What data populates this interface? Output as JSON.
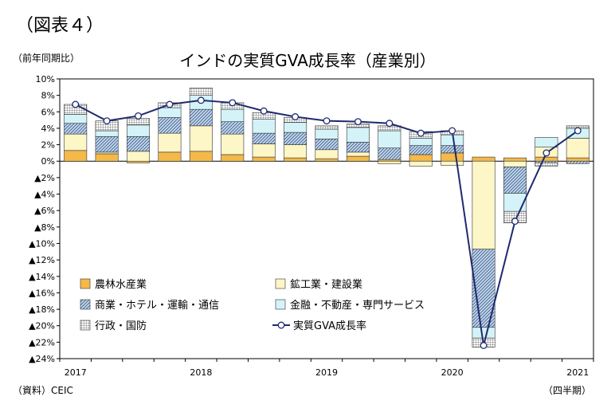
{
  "figure_label": "（図表４）",
  "unit_label": "（前年同期比）",
  "source_label": "（資料）CEIC",
  "period_label": "（四半期）",
  "chart_data": {
    "type": "bar",
    "title": "インドの実質GVA成長率（産業別）",
    "stacked": true,
    "ylim": [
      -24,
      10
    ],
    "yticks": [
      {
        "value": 10,
        "label": "10%"
      },
      {
        "value": 8,
        "label": "8%"
      },
      {
        "value": 6,
        "label": "6%"
      },
      {
        "value": 4,
        "label": "4%"
      },
      {
        "value": 2,
        "label": "2%"
      },
      {
        "value": 0,
        "label": "0%"
      },
      {
        "value": -2,
        "label": "▲2%"
      },
      {
        "value": -4,
        "label": "▲4%"
      },
      {
        "value": -6,
        "label": "▲6%"
      },
      {
        "value": -8,
        "label": "▲8%"
      },
      {
        "value": -10,
        "label": "▲10%"
      },
      {
        "value": -12,
        "label": "▲12%"
      },
      {
        "value": -14,
        "label": "▲14%"
      },
      {
        "value": -16,
        "label": "▲16%"
      },
      {
        "value": -18,
        "label": "▲18%"
      },
      {
        "value": -20,
        "label": "▲20%"
      },
      {
        "value": -22,
        "label": "▲22%"
      },
      {
        "value": -24,
        "label": "▲24%"
      }
    ],
    "x_year_labels": [
      {
        "index": 0,
        "label": "2017"
      },
      {
        "index": 4,
        "label": "2018"
      },
      {
        "index": 8,
        "label": "2019"
      },
      {
        "index": 12,
        "label": "2020"
      },
      {
        "index": 16,
        "label": "2021"
      }
    ],
    "quarter_count": 17,
    "legend_placement": "inside-bottom",
    "series": [
      {
        "name": "農林水産業",
        "kind": "bar",
        "color": "#f5b94a",
        "pattern": "solid",
        "values": [
          1.3,
          0.9,
          -0.2,
          1.1,
          1.2,
          0.8,
          0.5,
          0.4,
          0.3,
          0.6,
          0.2,
          0.8,
          1.0,
          0.5,
          0.4,
          0.5,
          0.4
        ]
      },
      {
        "name": "鉱工業・建設業",
        "kind": "bar",
        "color": "#fdf6c6",
        "pattern": "solid",
        "values": [
          2.0,
          0.2,
          1.2,
          2.3,
          3.1,
          2.5,
          1.6,
          1.6,
          1.1,
          0.5,
          -0.3,
          -0.6,
          -0.5,
          -10.7,
          -0.7,
          1.2,
          2.4
        ]
      },
      {
        "name": "商業・ホテル・運輸・通信",
        "kind": "bar",
        "color": "#9bb8d6",
        "pattern": "diagonal",
        "values": [
          1.3,
          1.9,
          1.8,
          1.9,
          2.0,
          1.5,
          1.3,
          1.5,
          1.3,
          1.2,
          1.4,
          1.1,
          0.9,
          -9.5,
          -3.2,
          -0.2,
          -0.3
        ]
      },
      {
        "name": "金融・不動産・専門サービス",
        "kind": "bar",
        "color": "#d4f3f8",
        "pattern": "solid",
        "values": [
          1.1,
          0.7,
          1.4,
          1.2,
          1.7,
          1.5,
          1.7,
          1.2,
          1.2,
          1.8,
          2.1,
          0.9,
          1.3,
          -1.3,
          -2.2,
          1.2,
          1.2
        ]
      },
      {
        "name": "行政・国防",
        "kind": "bar",
        "color": "#ffffff",
        "pattern": "grid",
        "values": [
          1.2,
          1.2,
          0.8,
          0.6,
          0.9,
          0.8,
          0.8,
          0.6,
          0.4,
          0.4,
          0.6,
          0.8,
          0.5,
          -1.1,
          -1.4,
          -0.4,
          0.3
        ]
      },
      {
        "name": "実質GVA成長率",
        "kind": "line",
        "color": "#1f2a6e",
        "values": [
          6.9,
          4.9,
          5.5,
          6.9,
          7.4,
          7.1,
          6.1,
          5.4,
          4.9,
          4.8,
          4.6,
          3.4,
          3.7,
          -22.4,
          -7.3,
          1.0,
          3.7
        ]
      }
    ]
  }
}
